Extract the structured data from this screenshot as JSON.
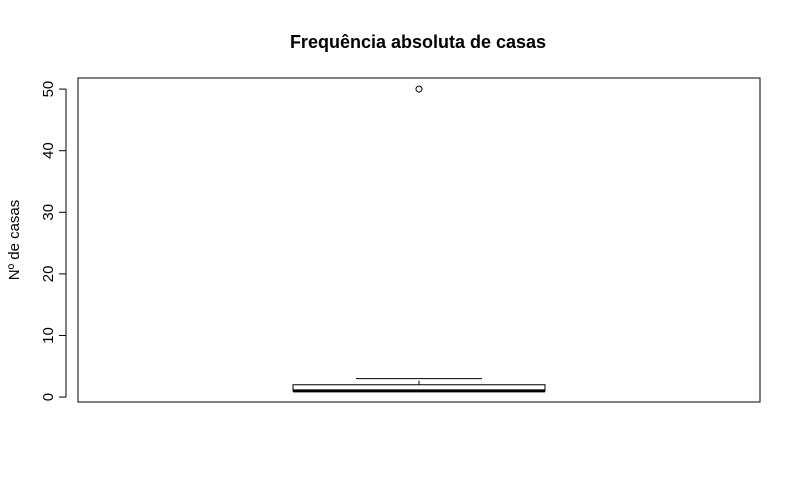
{
  "chart_data": {
    "type": "boxplot",
    "title": "Frequência absoluta de casas",
    "xlabel": "",
    "ylabel": "Nº de casas",
    "ylim": [
      -0.8,
      51.8
    ],
    "yticks": [
      0,
      10,
      20,
      30,
      40,
      50
    ],
    "grid": false,
    "box": {
      "whisker_low": 1,
      "q1": 1,
      "median": 1,
      "q3": 2,
      "whisker_high": 3,
      "outliers": [
        50
      ]
    },
    "colors": {
      "box_fill": "#ffffff",
      "stroke": "#000000"
    }
  }
}
